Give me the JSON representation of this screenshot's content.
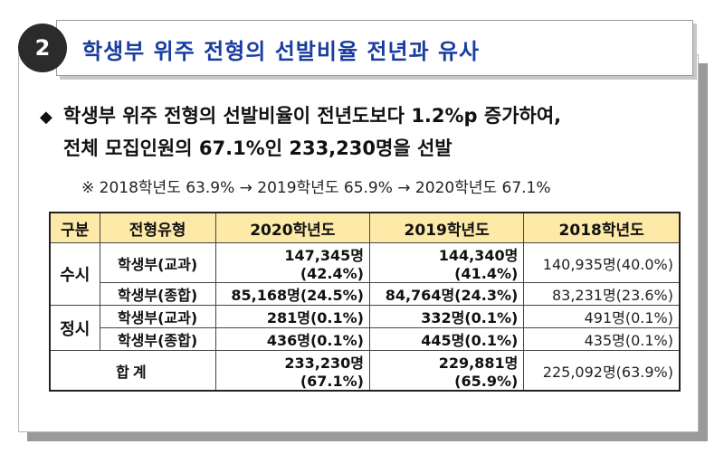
{
  "header": {
    "badge_number": "2",
    "title": "학생부 위주 전형의 선발비율 전년과 유사"
  },
  "summary": {
    "line1": "학생부 위주 전형의 선발비율이 전년도보다 1.2%p 증가하여,",
    "line2": "전체 모집인원의 67.1%인 233,230명을 선발",
    "note": "※ 2018학년도 63.9% → 2019학년도 65.9% → 2020학년도 67.1%"
  },
  "table": {
    "headers": [
      "구분",
      "전형유형",
      "2020학년도",
      "2019학년도",
      "2018학년도"
    ],
    "groups": [
      {
        "category": "수시",
        "rows": [
          {
            "type": "학생부(교과)",
            "y2020": "147,345명(42.4%)",
            "y2019": "144,340명(41.4%)",
            "y2018": "140,935명(40.0%)"
          },
          {
            "type": "학생부(종합)",
            "y2020": "85,168명(24.5%)",
            "y2019": "84,764명(24.3%)",
            "y2018": "83,231명(23.6%)"
          }
        ]
      },
      {
        "category": "정시",
        "rows": [
          {
            "type": "학생부(교과)",
            "y2020": "281명(0.1%)",
            "y2019": "332명(0.1%)",
            "y2018": "491명(0.1%)"
          },
          {
            "type": "학생부(종합)",
            "y2020": "436명(0.1%)",
            "y2019": "445명(0.1%)",
            "y2018": "435명(0.1%)"
          }
        ]
      }
    ],
    "total": {
      "label": "합계",
      "y2020": "233,230명(67.1%)",
      "y2019": "229,881명(65.9%)",
      "y2018": "225,092명(63.9%)"
    }
  },
  "colors": {
    "title_text": "#1a3ea0",
    "header_fill": "#fde9a8",
    "badge_fill": "#2b2b2b"
  }
}
